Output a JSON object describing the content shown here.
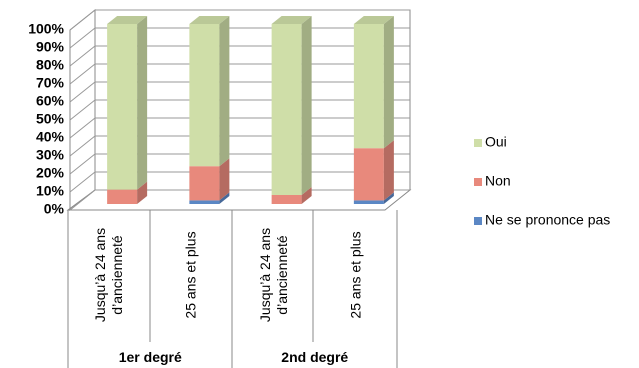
{
  "chart_data": {
    "type": "bar",
    "stacked": true,
    "categories": [
      "Jusqu’à 24 ans d’ancienneté",
      "25 ans et plus",
      "Jusqu’à 24 ans d’ancienneté",
      "25 ans et plus"
    ],
    "groups": [
      "1er degré",
      "2nd degré"
    ],
    "series": [
      {
        "name": "Ne se prononce pas",
        "color": "#5b87c4",
        "values": [
          0,
          2,
          0,
          2
        ]
      },
      {
        "name": "Non",
        "color": "#e8897c",
        "values": [
          8,
          19,
          5,
          29
        ]
      },
      {
        "name": "Oui",
        "color": "#cfdea8",
        "values": [
          92,
          79,
          95,
          69
        ]
      }
    ],
    "ylim": [
      0,
      100
    ],
    "yticks": [
      {
        "value": 0,
        "label": "0%"
      },
      {
        "value": 10,
        "label": "10%"
      },
      {
        "value": 20,
        "label": "20%"
      },
      {
        "value": 30,
        "label": "30%"
      },
      {
        "value": 40,
        "label": "40%"
      },
      {
        "value": 50,
        "label": "50%"
      },
      {
        "value": 60,
        "label": "60%"
      },
      {
        "value": 70,
        "label": "70%"
      },
      {
        "value": 80,
        "label": "80%"
      },
      {
        "value": 90,
        "label": "90%"
      },
      {
        "value": 100,
        "label": "100%"
      }
    ],
    "grid": true,
    "legend": "right"
  }
}
